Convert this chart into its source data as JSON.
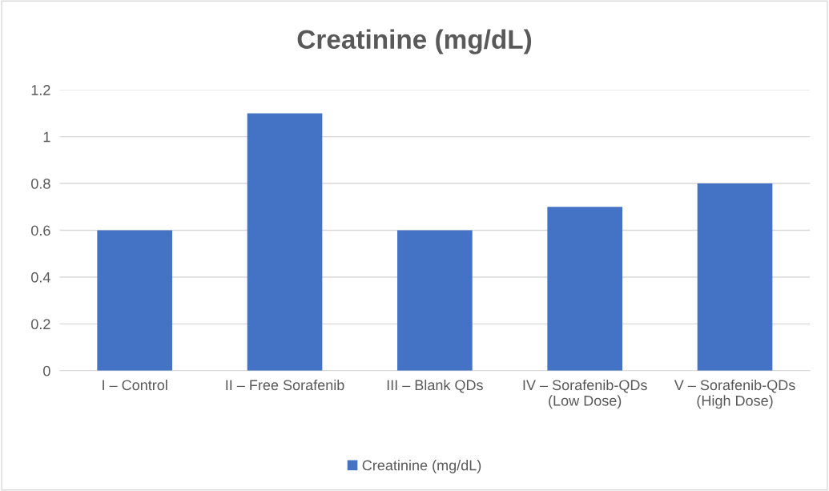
{
  "chart_data": {
    "type": "bar",
    "title": "Creatinine (mg/dL)",
    "categories": [
      "I – Control",
      "II – Free Sorafenib",
      "III – Blank QDs",
      "IV – Sorafenib-QDs\n(Low Dose)",
      "V – Sorafenib-QDs\n(High Dose)"
    ],
    "series": [
      {
        "name": "Creatinine (mg/dL)",
        "color": "#4472c4",
        "values": [
          0.6,
          1.1,
          0.6,
          0.7,
          0.8
        ]
      }
    ],
    "ylim": [
      0,
      1.2
    ],
    "yticks": [
      0,
      0.2,
      0.4,
      0.6,
      0.8,
      1,
      1.2
    ],
    "grid": "y",
    "legend": "bottom"
  }
}
